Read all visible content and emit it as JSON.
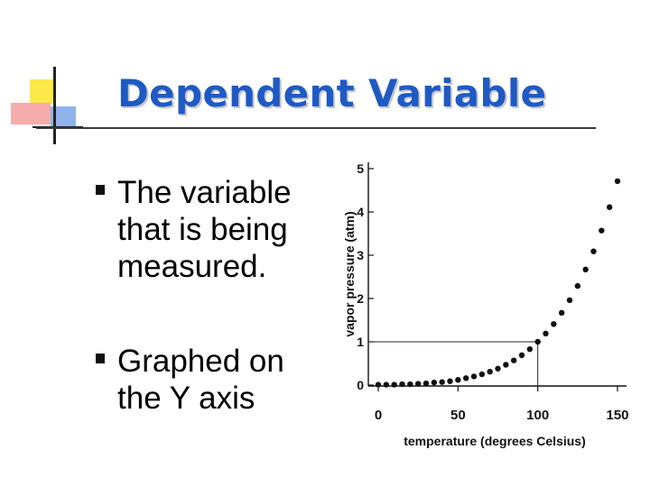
{
  "slide": {
    "title": "Dependent Variable",
    "bullets": [
      {
        "lines": [
          "The variable",
          "that is being",
          "measured."
        ]
      },
      {
        "lines": [
          "Graphed on",
          "the Y axis"
        ]
      }
    ]
  },
  "colors": {
    "title": "#1f5ac4",
    "logo_yellow": "#fde84a",
    "logo_pink": "#f5a3a3",
    "logo_blue": "#7ea6e8"
  },
  "chart_data": {
    "type": "scatter",
    "title": "",
    "xlabel": "temperature (degrees Celsius)",
    "ylabel": "vapor pressure (atm)",
    "xlim": [
      0,
      150
    ],
    "ylim": [
      0,
      5
    ],
    "xticks": [
      0,
      50,
      100,
      150
    ],
    "yticks": [
      0,
      1,
      2,
      3,
      4,
      5
    ],
    "grid": false,
    "series": [
      {
        "marker": "dot",
        "x": [
          0,
          5,
          10,
          15,
          20,
          25,
          30,
          35,
          40,
          45,
          50,
          55,
          60,
          65,
          70,
          75,
          80,
          85,
          90,
          95,
          100,
          105,
          110,
          115,
          120,
          125,
          130,
          135,
          140,
          145,
          150
        ],
        "y": [
          0.01,
          0.01,
          0.01,
          0.02,
          0.02,
          0.03,
          0.04,
          0.06,
          0.07,
          0.09,
          0.12,
          0.16,
          0.2,
          0.25,
          0.31,
          0.38,
          0.47,
          0.57,
          0.69,
          0.83,
          1.0,
          1.19,
          1.41,
          1.67,
          1.96,
          2.29,
          2.67,
          3.09,
          3.57,
          4.11,
          4.71
        ]
      }
    ],
    "reference_point": {
      "x": 100,
      "y": 1
    }
  }
}
